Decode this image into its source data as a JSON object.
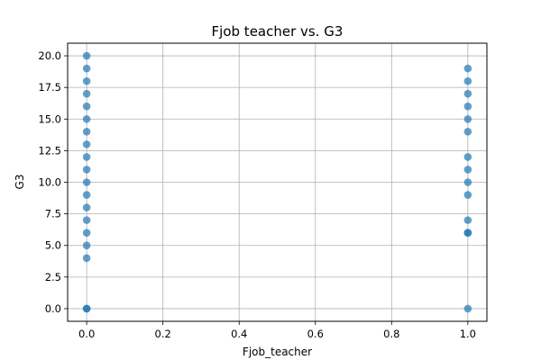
{
  "chart_data": {
    "type": "scatter",
    "title": "Fjob teacher vs. G3",
    "xlabel": "Fjob_teacher",
    "ylabel": "G3",
    "xlim": [
      -0.05,
      1.05
    ],
    "ylim": [
      -1.0,
      21.0
    ],
    "xticks": [
      0.0,
      0.2,
      0.4,
      0.6,
      0.8,
      1.0
    ],
    "xtick_labels": [
      "0.0",
      "0.2",
      "0.4",
      "0.6",
      "0.8",
      "1.0"
    ],
    "yticks": [
      0.0,
      2.5,
      5.0,
      7.5,
      10.0,
      12.5,
      15.0,
      17.5,
      20.0
    ],
    "ytick_labels": [
      "0.0",
      "2.5",
      "5.0",
      "7.5",
      "10.0",
      "12.5",
      "15.0",
      "17.5",
      "20.0"
    ],
    "grid": true,
    "color": "#1f77b4",
    "series": [
      {
        "x": [
          0,
          0,
          0,
          0,
          0,
          0,
          0,
          0,
          0,
          0,
          0,
          0,
          0,
          0,
          0,
          0,
          0,
          0,
          0,
          1,
          1,
          1,
          1,
          1,
          1,
          1,
          1,
          1,
          1,
          1,
          1,
          1,
          1
        ],
        "y": [
          0,
          4,
          5,
          6,
          7,
          8,
          9,
          10,
          11,
          12,
          13,
          14,
          15,
          16,
          17,
          18,
          19,
          20,
          0,
          0,
          6,
          7,
          9,
          10,
          11,
          12,
          14,
          15,
          16,
          17,
          18,
          19,
          6
        ]
      }
    ]
  }
}
